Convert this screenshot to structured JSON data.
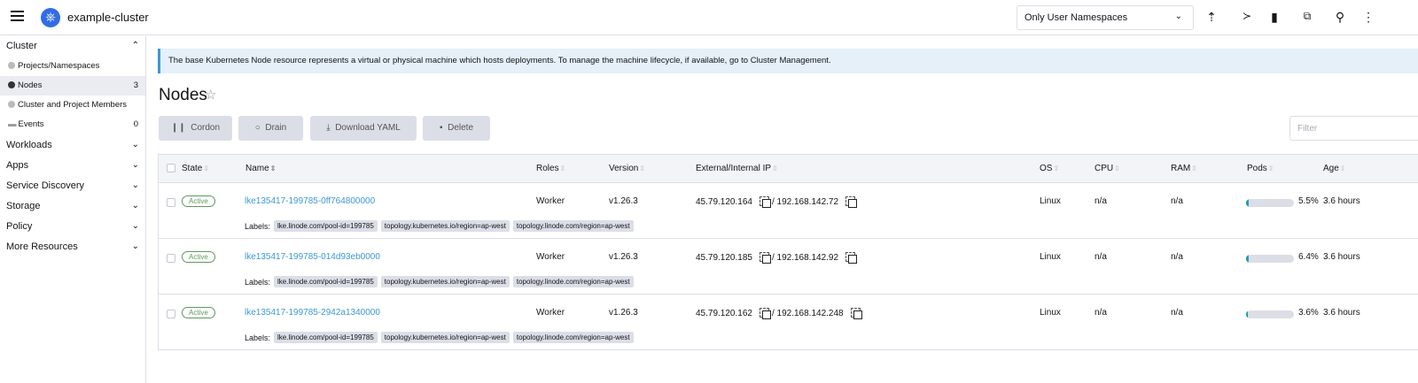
{
  "header": {
    "cluster_name": "example-cluster",
    "namespace_filter": "Only User Namespaces",
    "icons": [
      "upload-icon",
      "terminal-icon",
      "file-icon",
      "copy-kubeconfig-icon",
      "search-icon",
      "more-vertical-icon"
    ]
  },
  "sidebar": {
    "cluster_label": "Cluster",
    "items": [
      {
        "label": "Projects/Namespaces",
        "count": ""
      },
      {
        "label": "Nodes",
        "count": "3"
      },
      {
        "label": "Cluster and Project Members",
        "count": ""
      },
      {
        "label": "Events",
        "count": "0"
      }
    ],
    "groups": [
      "Workloads",
      "Apps",
      "Service Discovery",
      "Storage",
      "Policy",
      "More Resources"
    ]
  },
  "banner": "The base Kubernetes Node resource represents a virtual or physical machine which hosts deployments. To manage the machine lifecycle, if available, go to Cluster Management.",
  "page": {
    "title": "Nodes",
    "filter_placeholder": "Filter"
  },
  "actions": {
    "cordon": "Cordon",
    "drain": "Drain",
    "download": "Download YAML",
    "delete": "Delete"
  },
  "columns": [
    "State",
    "Name",
    "Roles",
    "Version",
    "External/Internal IP",
    "OS",
    "CPU",
    "RAM",
    "Pods",
    "Age"
  ],
  "labels_prefix": "Labels:",
  "rows": [
    {
      "state": "Active",
      "name": "lke135417-199785-0ff764800000",
      "role": "Worker",
      "version": "v1.26.3",
      "external_ip": "45.79.120.164",
      "internal_ip": "192.168.142.72",
      "os": "Linux",
      "cpu": "n/a",
      "ram": "n/a",
      "pods_pct": 5.5,
      "pods": "5.5%",
      "age": "3.6 hours",
      "labels": [
        "lke.linode.com/pool-id=199785",
        "topology.kubernetes.io/region=ap-west",
        "topology.linode.com/region=ap-west"
      ]
    },
    {
      "state": "Active",
      "name": "lke135417-199785-014d93eb0000",
      "role": "Worker",
      "version": "v1.26.3",
      "external_ip": "45.79.120.185",
      "internal_ip": "192.168.142.92",
      "os": "Linux",
      "cpu": "n/a",
      "ram": "n/a",
      "pods_pct": 6.4,
      "pods": "6.4%",
      "age": "3.6 hours",
      "labels": [
        "lke.linode.com/pool-id=199785",
        "topology.kubernetes.io/region=ap-west",
        "topology.linode.com/region=ap-west"
      ]
    },
    {
      "state": "Active",
      "name": "lke135417-199785-2942a1340000",
      "role": "Worker",
      "version": "v1.26.3",
      "external_ip": "45.79.120.162",
      "internal_ip": "192.168.142.248",
      "os": "Linux",
      "cpu": "n/a",
      "ram": "n/a",
      "pods_pct": 3.6,
      "pods": "3.6%",
      "age": "3.6 hours",
      "labels": [
        "lke.linode.com/pool-id=199785",
        "topology.kubernetes.io/region=ap-west",
        "topology.linode.com/region=ap-west"
      ]
    }
  ]
}
